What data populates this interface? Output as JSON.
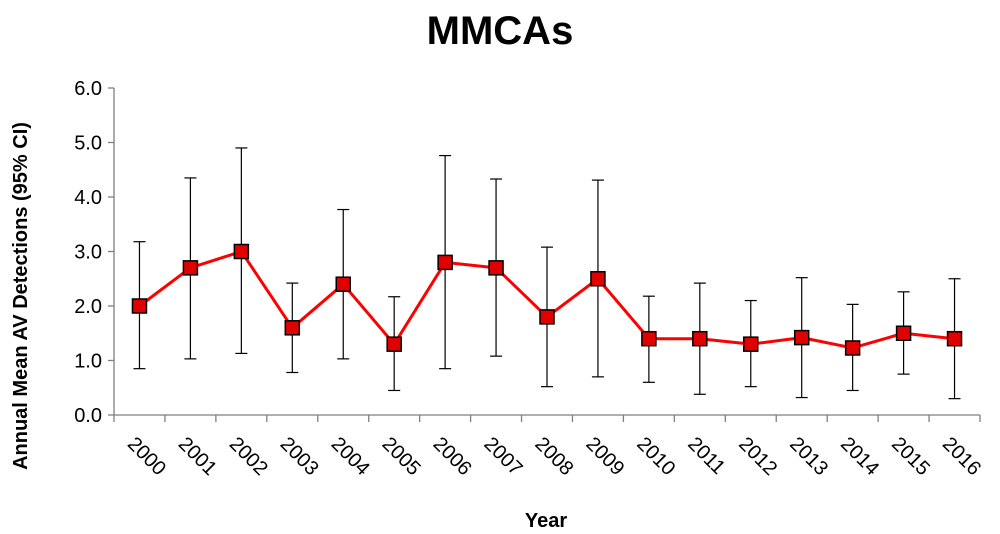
{
  "chart_data": {
    "type": "line",
    "title": "MMCAs",
    "xlabel": "Year",
    "ylabel": "Annual Mean AV Detections (95% CI)",
    "ylim": [
      0,
      6
    ],
    "yticks": [
      "0.0",
      "1.0",
      "2.0",
      "3.0",
      "4.0",
      "5.0",
      "6.0"
    ],
    "categories": [
      "2000",
      "2001",
      "2002",
      "2003",
      "2004",
      "2005",
      "2006",
      "2007",
      "2008",
      "2009",
      "2010",
      "2011",
      "2012",
      "2013",
      "2014",
      "2015",
      "2016"
    ],
    "series": [
      {
        "values": [
          2.0,
          2.7,
          3.0,
          1.6,
          2.4,
          1.3,
          2.8,
          2.7,
          1.8,
          2.5,
          1.4,
          1.4,
          1.3,
          1.42,
          1.23,
          1.5,
          1.4
        ],
        "ci_lower": [
          0.85,
          1.03,
          1.13,
          0.78,
          1.03,
          0.45,
          0.85,
          1.08,
          0.52,
          0.7,
          0.6,
          0.38,
          0.52,
          0.32,
          0.45,
          0.75,
          0.3
        ],
        "ci_upper": [
          3.18,
          4.35,
          4.9,
          2.42,
          3.77,
          2.17,
          4.76,
          4.33,
          3.08,
          4.31,
          2.18,
          2.42,
          2.1,
          2.52,
          2.03,
          2.26,
          2.5
        ],
        "line_color": "#ff0000",
        "marker_fill": "#e00000",
        "marker_border": "#000000"
      }
    ],
    "grid": false,
    "legend": "none"
  }
}
